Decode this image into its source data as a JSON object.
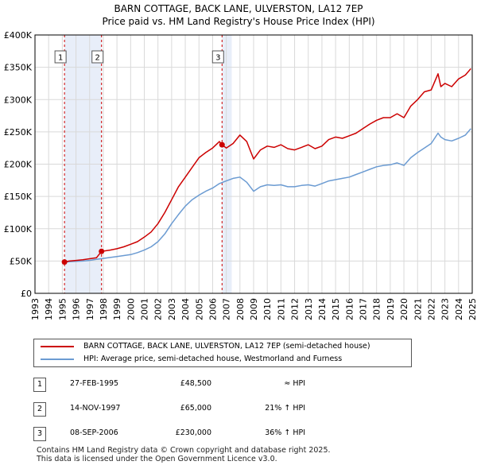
{
  "header": {
    "title": "BARN COTTAGE, BACK LANE, ULVERSTON, LA12 7EP",
    "subtitle": "Price paid vs. HM Land Registry's House Price Index (HPI)"
  },
  "colors": {
    "property": "#cc0000",
    "hpi": "#6b9bd2",
    "shade": "#e8eef9",
    "marker_line": "#cc0000"
  },
  "legend": {
    "property_label": "BARN COTTAGE, BACK LANE, ULVERSTON, LA12 7EP (semi-detached house)",
    "hpi_label": "HPI: Average price, semi-detached house, Westmorland and Furness"
  },
  "transactions": [
    {
      "num": "1",
      "date": "27-FEB-1995",
      "price": "£48,500",
      "hpi": "≈ HPI"
    },
    {
      "num": "2",
      "date": "14-NOV-1997",
      "price": "£65,000",
      "hpi": "21% ↑ HPI"
    },
    {
      "num": "3",
      "date": "08-SEP-2006",
      "price": "£230,000",
      "hpi": "36% ↑ HPI"
    }
  ],
  "footer": {
    "line1": "Contains HM Land Registry data © Crown copyright and database right 2025.",
    "line2": "This data is licensed under the Open Government Licence v3.0."
  },
  "chart_data": {
    "type": "line",
    "title": "BARN COTTAGE, BACK LANE, ULVERSTON, LA12 7EP",
    "subtitle": "Price paid vs. HM Land Registry's House Price Index (HPI)",
    "xlim": [
      1993,
      2025
    ],
    "ylim": [
      0,
      400000
    ],
    "x_ticks": [
      1993,
      1994,
      1995,
      1996,
      1997,
      1998,
      1999,
      2000,
      2001,
      2002,
      2003,
      2004,
      2005,
      2006,
      2007,
      2008,
      2009,
      2010,
      2011,
      2012,
      2013,
      2014,
      2015,
      2016,
      2017,
      2018,
      2019,
      2020,
      2021,
      2022,
      2023,
      2024,
      2025
    ],
    "y_ticks": [
      0,
      50000,
      100000,
      150000,
      200000,
      250000,
      300000,
      350000,
      400000
    ],
    "y_tick_labels": [
      "£0",
      "£50K",
      "£100K",
      "£150K",
      "£200K",
      "£250K",
      "£300K",
      "£350K",
      "£400K"
    ],
    "sales": [
      {
        "label": "1",
        "x": 1995.16,
        "y": 48500
      },
      {
        "label": "2",
        "x": 1997.87,
        "y": 65000
      },
      {
        "label": "3",
        "x": 2006.69,
        "y": 230000
      }
    ],
    "shaded_ranges": [
      [
        1995.16,
        1997.87
      ],
      [
        2006.69,
        2007.4
      ]
    ],
    "series": [
      {
        "name": "BARN COTTAGE, BACK LANE, ULVERSTON, LA12 7EP (semi-detached house)",
        "x": [
          1995.16,
          1995.5,
          1996,
          1996.5,
          1997,
          1997.5,
          1997.87,
          1998.5,
          1999,
          1999.5,
          2000,
          2000.5,
          2001,
          2001.5,
          2002,
          2002.5,
          2003,
          2003.5,
          2004,
          2004.5,
          2005,
          2005.5,
          2006,
          2006.5,
          2006.69,
          2007,
          2007.5,
          2008,
          2008.5,
          2009,
          2009.5,
          2010,
          2010.5,
          2011,
          2011.5,
          2012,
          2012.5,
          2013,
          2013.5,
          2014,
          2014.5,
          2015,
          2015.5,
          2016,
          2016.5,
          2017,
          2017.5,
          2018,
          2018.5,
          2019,
          2019.5,
          2020,
          2020.5,
          2021,
          2021.5,
          2022,
          2022.5,
          2022.7,
          2023,
          2023.5,
          2024,
          2024.5,
          2024.9
        ],
        "values": [
          48500,
          50000,
          51000,
          52000,
          53500,
          55000,
          65000,
          67000,
          69000,
          72000,
          76000,
          80000,
          87000,
          95000,
          108000,
          125000,
          145000,
          165000,
          180000,
          195000,
          210000,
          218000,
          225000,
          235000,
          230000,
          225000,
          232000,
          245000,
          235000,
          208000,
          222000,
          228000,
          226000,
          230000,
          224000,
          222000,
          226000,
          230000,
          224000,
          228000,
          238000,
          242000,
          240000,
          244000,
          248000,
          255000,
          262000,
          268000,
          272000,
          272000,
          278000,
          272000,
          290000,
          300000,
          312000,
          315000,
          340000,
          320000,
          325000,
          320000,
          332000,
          338000,
          348000
        ]
      },
      {
        "name": "HPI: Average price, semi-detached house, Westmorland and Furness",
        "x": [
          1995.16,
          1995.5,
          1996,
          1996.5,
          1997,
          1997.5,
          1998,
          1998.5,
          1999,
          1999.5,
          2000,
          2000.5,
          2001,
          2001.5,
          2002,
          2002.5,
          2003,
          2003.5,
          2004,
          2004.5,
          2005,
          2005.5,
          2006,
          2006.5,
          2007,
          2007.5,
          2008,
          2008.5,
          2009,
          2009.5,
          2010,
          2010.5,
          2011,
          2011.5,
          2012,
          2012.5,
          2013,
          2013.5,
          2014,
          2014.5,
          2015,
          2015.5,
          2016,
          2016.5,
          2017,
          2017.5,
          2018,
          2018.5,
          2019,
          2019.5,
          2020,
          2020.5,
          2021,
          2021.5,
          2022,
          2022.5,
          2022.7,
          2023,
          2023.5,
          2024,
          2024.5,
          2024.9
        ],
        "values": [
          48500,
          49000,
          49500,
          50000,
          51000,
          52500,
          54000,
          55500,
          57000,
          58500,
          60000,
          63000,
          67000,
          72000,
          80000,
          92000,
          108000,
          122000,
          135000,
          145000,
          152000,
          158000,
          163000,
          170000,
          174000,
          178000,
          180000,
          172000,
          158000,
          165000,
          168000,
          167000,
          168000,
          165000,
          165000,
          167000,
          168000,
          166000,
          170000,
          174000,
          176000,
          178000,
          180000,
          184000,
          188000,
          192000,
          196000,
          198000,
          199000,
          202000,
          198000,
          210000,
          218000,
          225000,
          232000,
          248000,
          242000,
          238000,
          236000,
          240000,
          245000,
          255000
        ]
      }
    ]
  }
}
